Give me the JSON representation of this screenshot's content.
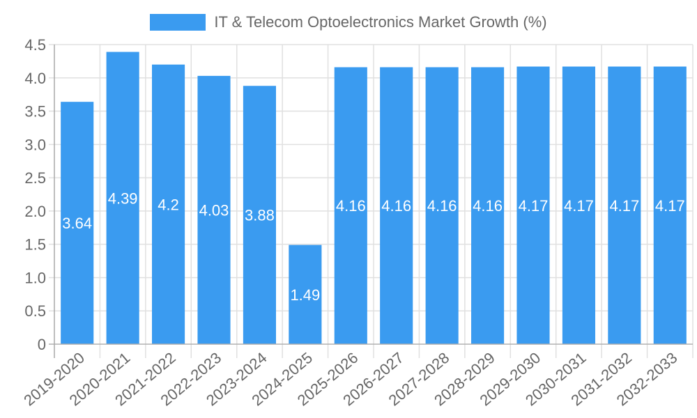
{
  "legend": {
    "label": "IT & Telecom Optoelectronics Market Growth (%)",
    "color": "#3a9bf0"
  },
  "chart_data": {
    "type": "bar",
    "title": "",
    "xlabel": "",
    "ylabel": "",
    "ylim": [
      0,
      4.5
    ],
    "yticks": [
      "0",
      "0.5",
      "1.0",
      "1.5",
      "2.0",
      "2.5",
      "3.0",
      "3.5",
      "4.0",
      "4.5"
    ],
    "grid": true,
    "legend_position": "top",
    "categories": [
      "2019-2020",
      "2020-2021",
      "2021-2022",
      "2022-2023",
      "2023-2024",
      "2024-2025",
      "2025-2026",
      "2026-2027",
      "2027-2028",
      "2028-2029",
      "2029-2030",
      "2030-2031",
      "2031-2032",
      "2032-2033"
    ],
    "series": [
      {
        "name": "IT & Telecom Optoelectronics Market Growth (%)",
        "color": "#3a9bf0",
        "values": [
          3.64,
          4.39,
          4.2,
          4.03,
          3.88,
          1.49,
          4.16,
          4.16,
          4.16,
          4.16,
          4.17,
          4.17,
          4.17,
          4.17
        ],
        "data_labels": [
          "3.64",
          "4.39",
          "4.2",
          "4.03",
          "3.88",
          "1.49",
          "4.16",
          "4.16",
          "4.16",
          "4.16",
          "4.17",
          "4.17",
          "4.17",
          "4.17"
        ]
      }
    ]
  }
}
